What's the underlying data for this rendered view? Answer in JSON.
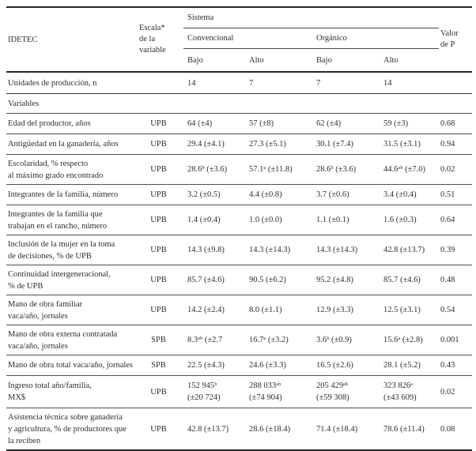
{
  "header": {
    "idetec": "IDETEC",
    "escala": "Escala*\nde la\nvariable",
    "sistema": "Sistema",
    "convencional": "Convencional",
    "organico": "Orgánico",
    "bajo1": "Bajo",
    "alto1": "Alto",
    "bajo2": "Bajo",
    "alto2": "Alto",
    "valor_p": "Valor\nde P"
  },
  "units_row": {
    "name": "Unidades de producción, n",
    "escala": "",
    "c1": "14",
    "c2": "7",
    "c3": "7",
    "c4": "14",
    "p": ""
  },
  "section_label": "Variables",
  "rows": [
    {
      "name": "Edad del productor, años",
      "escala": "UPB",
      "c1": "64 (±4)",
      "c2": "57 (±8)",
      "c3": "62 (±4)",
      "c4": "59 (±3)",
      "p": "0.68"
    },
    {
      "name": "Antigüedad en la ganadería, años",
      "escala": "UPB",
      "c1": "29.4 (±4.1)",
      "c2": "27.3 (±5.1)",
      "c3": "30.1 (±7.4)",
      "c4": "31.5 (±3.1)",
      "p": "0.94"
    },
    {
      "name": "Escolaridad, % respecto\nal máximo grado encontrado",
      "escala": "UPB",
      "c1": "28.6ᵇ (±3.6)",
      "c2": "57.1ᵃ (±11.8)",
      "c3": "28.6ᵇ (±3.6)",
      "c4": "44.6ᵃᵇ (±7.0)",
      "p": "0.02"
    },
    {
      "name": "Integrantes de la familia, número",
      "escala": "UPB",
      "c1": "3.2 (±0.5)",
      "c2": "4.4 (±0.8)",
      "c3": "3.7 (±0.6)",
      "c4": "3.4 (±0.4)",
      "p": "0.51"
    },
    {
      "name": "Integrantes de la familia que\ntrabajan en el rancho, número",
      "escala": "UPB",
      "c1": "1.4 (±0.4)",
      "c2": "1.0 (±0.0)",
      "c3": "1.1 (±0.1)",
      "c4": "1.6 (±0.3)",
      "p": "0.64"
    },
    {
      "name": "Inclusión de la mujer en la toma\nde decisiones, % de UPB",
      "escala": "UPB",
      "c1": "14.3 (±9.8)",
      "c2": "14.3 (±14.3)",
      "c3": "14.3 (±14.3)",
      "c4": "42.8 (±13.7)",
      "p": "0.39"
    },
    {
      "name": "Continuidad intergeneracional,\n% de UPB",
      "escala": "UPB",
      "c1": "85.7 (±4.6)",
      "c2": "90.5 (±6.2)",
      "c3": "95.2 (±4.8)",
      "c4": "85.7 (±4.6)",
      "p": "0.48"
    },
    {
      "name": "Mano de obra familiar\nvaca/año, jornales",
      "escala": "UPB",
      "c1": "14.2 (±2.4)",
      "c2": "8.0 (±1.1)",
      "c3": "12.9 (±3.3)",
      "c4": "12.5 (±3.1)",
      "p": "0.54"
    },
    {
      "name": "Mano de obra externa contratada\nvaca/año, jornales",
      "escala": "SPB",
      "c1": "8.3ᵃᵇ (±2.7",
      "c2": "16.7ᵃ (±3.2)",
      "c3": "3.6ᵇ (±0.9)",
      "c4": "15.6ᵃ (±2.8)",
      "p": "0.001"
    },
    {
      "name": "Mano de obra total vaca/año, jornales",
      "escala": "SPB",
      "c1": "22.5 (±4.3)",
      "c2": "24.6 (±3.3)",
      "c3": "16.5 (±2.6)",
      "c4": "28.1 (±5.2)",
      "p": "0.43"
    },
    {
      "name": "Ingreso total año/familia,\nMX$",
      "escala": "UPB",
      "c1": "152 945ᵇ\n(±20 724)",
      "c2": "288 033ᵃᵇ\n(±74 904)",
      "c3": "205 429ᵃᵇ\n(±59 308)",
      "c4": "323 826ᵃ\n(±43 609)",
      "p": "0.02"
    },
    {
      "name": "Asistencia técnica sobre ganadería\ny agricultura, % de productores que\nla reciben",
      "escala": "UPB",
      "c1": "42.8 (±13.7)",
      "c2": "28.6 (±18.4)",
      "c3": "71.4 (±18.4)",
      "c4": "78.6 (±11.4)",
      "p": "0.08"
    }
  ]
}
